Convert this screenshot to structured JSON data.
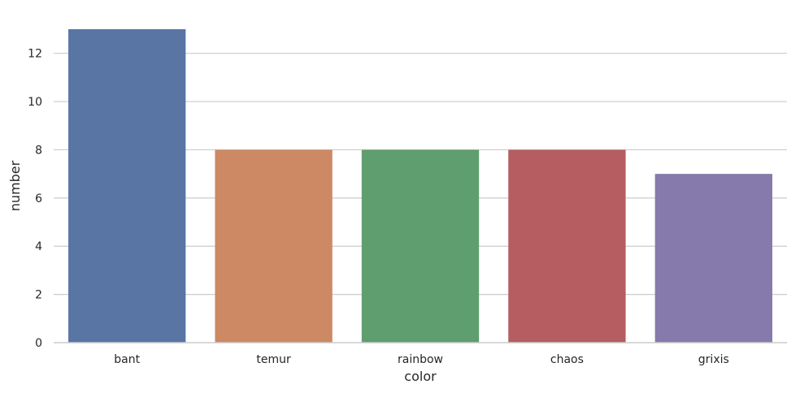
{
  "chart_data": {
    "type": "bar",
    "title": "",
    "xlabel": "color",
    "ylabel": "number",
    "categories": [
      "bant",
      "temur",
      "rainbow",
      "chaos",
      "grixis"
    ],
    "values": [
      13,
      8,
      8,
      8,
      7
    ],
    "colors": [
      "#5875a4",
      "#cc8963",
      "#5f9e6e",
      "#b55d60",
      "#857aab"
    ],
    "ylim": [
      0,
      13
    ],
    "yticks": [
      0,
      2,
      4,
      6,
      8,
      10,
      12
    ],
    "grid": true,
    "legend": "none"
  }
}
